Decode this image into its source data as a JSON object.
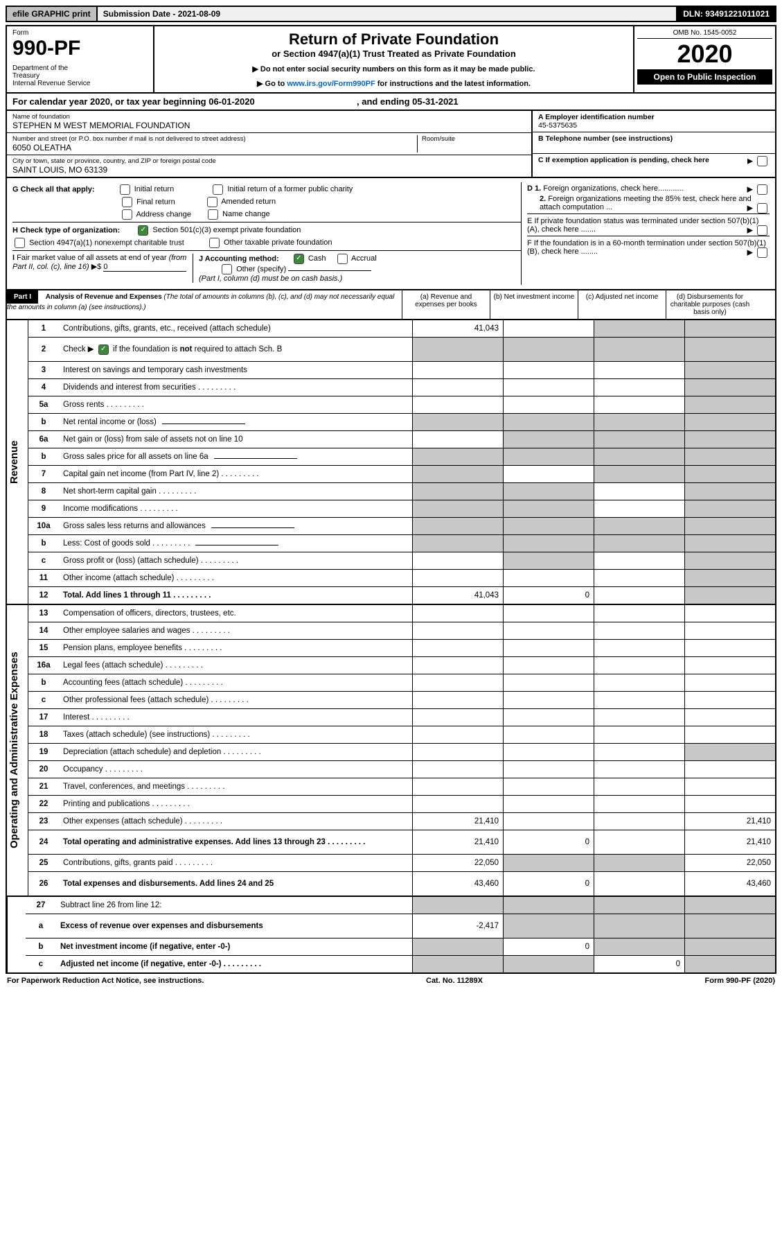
{
  "top_bar": {
    "efile": "efile GRAPHIC print",
    "submission": "Submission Date - 2021-08-09",
    "dln": "DLN: 93491221011021"
  },
  "header": {
    "form": "Form",
    "code": "990-PF",
    "dept": "Department of the Treasury\nInternal Revenue Service",
    "title": "Return of Private Foundation",
    "subtitle": "or Section 4947(a)(1) Trust Treated as Private Foundation",
    "instr1": "▶ Do not enter social security numbers on this form as it may be made public.",
    "instr2": "▶ Go to www.irs.gov/Form990PF for instructions and the latest information.",
    "link": "www.irs.gov/Form990PF",
    "omb": "OMB No. 1545-0052",
    "year": "2020",
    "open": "Open to Public Inspection"
  },
  "cal_year": {
    "text_a": "For calendar year 2020, or tax year beginning 06-01-2020",
    "text_b": ", and ending 05-31-2021"
  },
  "entity": {
    "name_label": "Name of foundation",
    "name": "STEPHEN M WEST MEMORIAL FOUNDATION",
    "addr_label": "Number and street (or P.O. box number if mail is not delivered to street address)",
    "addr": "6050 OLEATHA",
    "room_label": "Room/suite",
    "city_label": "City or town, state or province, country, and ZIP or foreign postal code",
    "city": "SAINT LOUIS, MO  63139",
    "a_label": "A Employer identification number",
    "a_val": "45-5375635",
    "b_label": "B Telephone number (see instructions)",
    "c_label": "C If exemption application is pending, check here"
  },
  "checkboxes": {
    "g_label": "G Check all that apply:",
    "g_items": [
      "Initial return",
      "Initial return of a former public charity",
      "Final return",
      "Amended return",
      "Address change",
      "Name change"
    ],
    "h_label": "H Check type of organization:",
    "h1": "Section 501(c)(3) exempt private foundation",
    "h2": "Section 4947(a)(1) nonexempt charitable trust",
    "h3": "Other taxable private foundation",
    "i_label": "I Fair market value of all assets at end of year (from Part II, col. (c), line 16) ▶$",
    "i_val": "0",
    "j_label": "J Accounting method:",
    "j_cash": "Cash",
    "j_accrual": "Accrual",
    "j_other": "Other (specify)",
    "j_note": "(Part I, column (d) must be on cash basis.)",
    "d1": "D 1. Foreign organizations, check here............",
    "d2": "2. Foreign organizations meeting the 85% test, check here and attach computation ...",
    "e": "E  If private foundation status was terminated under section 507(b)(1)(A), check here .......",
    "f": "F  If the foundation is in a 60-month termination under section 507(b)(1)(B), check here ........"
  },
  "part1": {
    "label": "Part I",
    "title": "Analysis of Revenue and Expenses",
    "note": "(The total of amounts in columns (b), (c), and (d) may not necessarily equal the amounts in column (a) (see instructions).)",
    "col_a": "(a)   Revenue and expenses per books",
    "col_b": "(b)   Net investment income",
    "col_c": "(c)   Adjusted net income",
    "col_d": "(d)   Disbursements for charitable purposes (cash basis only)"
  },
  "sections": {
    "revenue": "Revenue",
    "expenses": "Operating and Administrative Expenses"
  },
  "rows": [
    {
      "n": "1",
      "d": "Contributions, gifts, grants, etc., received (attach schedule)",
      "a": "41,043",
      "shb": false,
      "shc": true,
      "shd": true
    },
    {
      "n": "2",
      "d": "Check ▶ ☑ if the foundation is not required to attach Sch. B",
      "a": "",
      "sha": true,
      "shb": true,
      "shc": true,
      "shd": true,
      "tall": true,
      "raw_html": true,
      "html": "Check ▶ <span class='cb checked'></span> if the foundation is <b>not</b> required to attach Sch. B"
    },
    {
      "n": "3",
      "d": "Interest on savings and temporary cash investments",
      "a": "",
      "shd": true
    },
    {
      "n": "4",
      "d": "Dividends and interest from securities",
      "a": "",
      "dots": true,
      "shd": true
    },
    {
      "n": "5a",
      "d": "Gross rents",
      "a": "",
      "dots": true,
      "shd": true
    },
    {
      "n": "b",
      "d": "Net rental income or (loss)",
      "a": "",
      "sha": true,
      "shb": true,
      "shc": true,
      "shd": true,
      "inline": true
    },
    {
      "n": "6a",
      "d": "Net gain or (loss) from sale of assets not on line 10",
      "a": "",
      "shb": true,
      "shc": true,
      "shd": true
    },
    {
      "n": "b",
      "d": "Gross sales price for all assets on line 6a",
      "a": "",
      "sha": true,
      "shb": true,
      "shc": true,
      "shd": true,
      "inline": true
    },
    {
      "n": "7",
      "d": "Capital gain net income (from Part IV, line 2)",
      "a": "",
      "dots": true,
      "sha": true,
      "shc": true,
      "shd": true
    },
    {
      "n": "8",
      "d": "Net short-term capital gain",
      "a": "",
      "dots": true,
      "sha": true,
      "shb": true,
      "shd": true
    },
    {
      "n": "9",
      "d": "Income modifications",
      "a": "",
      "dots": true,
      "sha": true,
      "shb": true,
      "shd": true
    },
    {
      "n": "10a",
      "d": "Gross sales less returns and allowances",
      "a": "",
      "sha": true,
      "shb": true,
      "shc": true,
      "shd": true,
      "inline": true
    },
    {
      "n": "b",
      "d": "Less: Cost of goods sold",
      "a": "",
      "dots": true,
      "sha": true,
      "shb": true,
      "shc": true,
      "shd": true,
      "inline": true
    },
    {
      "n": "c",
      "d": "Gross profit or (loss) (attach schedule)",
      "a": "",
      "dots": true,
      "shb": true,
      "shd": true
    },
    {
      "n": "11",
      "d": "Other income (attach schedule)",
      "a": "",
      "dots": true,
      "shd": true
    },
    {
      "n": "12",
      "d": "Total. Add lines 1 through 11",
      "a": "41,043",
      "b": "0",
      "dots": true,
      "bold": true,
      "shd": true
    }
  ],
  "exp_rows": [
    {
      "n": "13",
      "d": "Compensation of officers, directors, trustees, etc."
    },
    {
      "n": "14",
      "d": "Other employee salaries and wages",
      "dots": true
    },
    {
      "n": "15",
      "d": "Pension plans, employee benefits",
      "dots": true
    },
    {
      "n": "16a",
      "d": "Legal fees (attach schedule)",
      "dots": true
    },
    {
      "n": "b",
      "d": "Accounting fees (attach schedule)",
      "dots": true
    },
    {
      "n": "c",
      "d": "Other professional fees (attach schedule)",
      "dots": true
    },
    {
      "n": "17",
      "d": "Interest",
      "dots": true
    },
    {
      "n": "18",
      "d": "Taxes (attach schedule) (see instructions)",
      "dots": true
    },
    {
      "n": "19",
      "d": "Depreciation (attach schedule) and depletion",
      "dots": true,
      "shd": true
    },
    {
      "n": "20",
      "d": "Occupancy",
      "dots": true
    },
    {
      "n": "21",
      "d": "Travel, conferences, and meetings",
      "dots": true
    },
    {
      "n": "22",
      "d": "Printing and publications",
      "dots": true
    },
    {
      "n": "23",
      "d": "Other expenses (attach schedule)",
      "a": "21,410",
      "dd": "21,410",
      "dots": true
    },
    {
      "n": "24",
      "d": "Total operating and administrative expenses. Add lines 13 through 23",
      "a": "21,410",
      "b": "0",
      "dd": "21,410",
      "bold": true,
      "tall": true,
      "dots": true
    },
    {
      "n": "25",
      "d": "Contributions, gifts, grants paid",
      "a": "22,050",
      "dd": "22,050",
      "dots": true,
      "shb": true,
      "shc": true
    },
    {
      "n": "26",
      "d": "Total expenses and disbursements. Add lines 24 and 25",
      "a": "43,460",
      "b": "0",
      "dd": "43,460",
      "bold": true,
      "tall": true
    }
  ],
  "sub_rows": [
    {
      "n": "27",
      "d": "Subtract line 26 from line 12:",
      "sha": true,
      "shb": true,
      "shc": true,
      "shd": true
    },
    {
      "n": "a",
      "d": "Excess of revenue over expenses and disbursements",
      "a": "-2,417",
      "bold": true,
      "shb": true,
      "shc": true,
      "shd": true,
      "tall": true
    },
    {
      "n": "b",
      "d": "Net investment income (if negative, enter -0-)",
      "b": "0",
      "bold": true,
      "sha": true,
      "shc": true,
      "shd": true
    },
    {
      "n": "c",
      "d": "Adjusted net income (if negative, enter -0-)",
      "c": "0",
      "bold": true,
      "sha": true,
      "shb": true,
      "shd": true,
      "dots": true
    }
  ],
  "footer": {
    "left": "For Paperwork Reduction Act Notice, see instructions.",
    "mid": "Cat. No. 11289X",
    "right": "Form 990-PF (2020)"
  }
}
